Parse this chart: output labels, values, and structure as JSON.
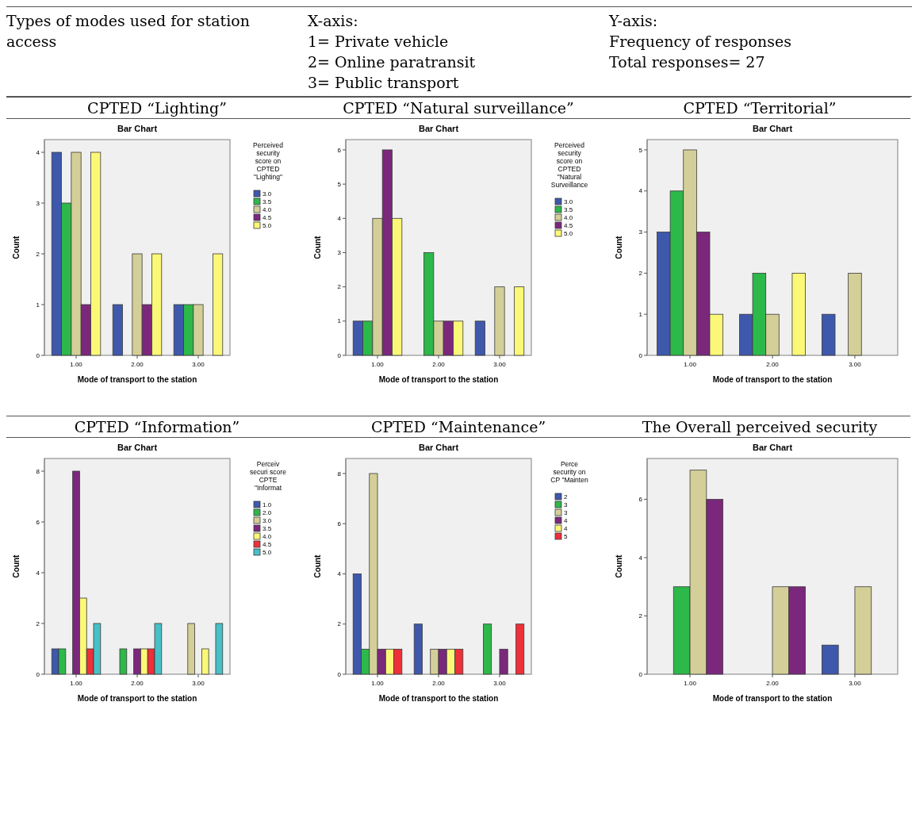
{
  "chart_data": [
    {
      "type": "other",
      "annotations": [
        "Types of modes used for station access",
        "X-axis:\n1= Private vehicle\n2= Online paratransit\n3= Public transport",
        "Y-axis:\nFrequency of responses\nTotal responses= 27"
      ]
    },
    {
      "type": "bar",
      "title": "CPTED “Lighting”",
      "subtitle": "Bar Chart",
      "xlabel": "Mode of transport to the station",
      "ylabel": "Count",
      "categories": [
        "1.00",
        "2.00",
        "3.00"
      ],
      "ylim": [
        0,
        4.25
      ],
      "yticks": [
        0,
        1,
        2,
        3,
        4
      ],
      "legend": "right",
      "legend_title": "Perceived security score on CPTED \"Lighting\"",
      "series": [
        {
          "name": "3.0",
          "color": "#3e58ac",
          "values": [
            4,
            1,
            1
          ]
        },
        {
          "name": "3.5",
          "color": "#2db84a",
          "values": [
            3,
            0,
            1
          ]
        },
        {
          "name": "4.0",
          "color": "#d4cf98",
          "values": [
            4,
            2,
            1
          ]
        },
        {
          "name": "4.5",
          "color": "#7b287c",
          "values": [
            1,
            1,
            0
          ]
        },
        {
          "name": "5.0",
          "color": "#fbf877",
          "values": [
            4,
            2,
            2
          ]
        }
      ]
    },
    {
      "type": "bar",
      "title": "CPTED “Natural surveillance”",
      "subtitle": "Bar Chart",
      "xlabel": "Mode of transport to the station",
      "ylabel": "Count",
      "categories": [
        "1.00",
        "2.00",
        "3.00"
      ],
      "ylim": [
        0,
        6.3
      ],
      "yticks": [
        0,
        1,
        2,
        3,
        4,
        5,
        6
      ],
      "legend": "right",
      "legend_title": "Perceived security score on CPTED \"Natural Surveillance",
      "series": [
        {
          "name": "3.0",
          "color": "#3e58ac",
          "values": [
            1,
            0,
            1
          ]
        },
        {
          "name": "3.5",
          "color": "#2db84a",
          "values": [
            1,
            3,
            0
          ]
        },
        {
          "name": "4.0",
          "color": "#d4cf98",
          "values": [
            4,
            1,
            2
          ]
        },
        {
          "name": "4.5",
          "color": "#7b287c",
          "values": [
            6,
            1,
            0
          ]
        },
        {
          "name": "5.0",
          "color": "#fbf877",
          "values": [
            4,
            1,
            2
          ]
        }
      ]
    },
    {
      "type": "bar",
      "title": "CPTED “Territorial”",
      "subtitle": "Bar Chart",
      "xlabel": "Mode of transport to the station",
      "ylabel": "Count",
      "categories": [
        "1.00",
        "2.00",
        "3.00"
      ],
      "ylim": [
        0,
        5.25
      ],
      "yticks": [
        0,
        1,
        2,
        3,
        4,
        5
      ],
      "series": [
        {
          "color": "#3e58ac",
          "values": [
            3,
            1,
            1
          ]
        },
        {
          "color": "#2db84a",
          "values": [
            4,
            2,
            0
          ]
        },
        {
          "color": "#d4cf98",
          "values": [
            5,
            1,
            2
          ]
        },
        {
          "color": "#7b287c",
          "values": [
            3,
            0,
            null
          ]
        },
        {
          "color": "#fbf877",
          "values": [
            1,
            2,
            null
          ]
        }
      ]
    },
    {
      "type": "bar",
      "title": "CPTED “Information”",
      "subtitle": "Bar Chart",
      "xlabel": "Mode of transport to the station",
      "ylabel": "Count",
      "categories": [
        "1.00",
        "2.00",
        "3.00"
      ],
      "ylim": [
        0,
        8.5
      ],
      "yticks": [
        0,
        2,
        4,
        6,
        8
      ],
      "legend": "right",
      "legend_title": "Perceiv securi score CPTE \"Informat",
      "series": [
        {
          "name": "1.0",
          "color": "#3e58ac",
          "values": [
            1,
            0,
            0
          ]
        },
        {
          "name": "2.0",
          "color": "#2db84a",
          "values": [
            1,
            1,
            0
          ]
        },
        {
          "name": "3.0",
          "color": "#d4cf98",
          "values": [
            0,
            0,
            2
          ]
        },
        {
          "name": "3.5",
          "color": "#7b287c",
          "values": [
            8,
            1,
            0
          ]
        },
        {
          "name": "4.0",
          "color": "#fbf877",
          "values": [
            3,
            1,
            1
          ]
        },
        {
          "name": "4.5",
          "color": "#ee3038",
          "values": [
            1,
            1,
            0
          ]
        },
        {
          "name": "5.0",
          "color": "#47c0c8",
          "values": [
            2,
            2,
            2
          ]
        }
      ]
    },
    {
      "type": "bar",
      "title": "CPTED “Maintenance”",
      "subtitle": "Bar Chart",
      "xlabel": "Mode of transport to the station",
      "ylabel": "Count",
      "categories": [
        "1.00",
        "2.00",
        "3.00"
      ],
      "ylim": [
        0,
        8.6
      ],
      "yticks": [
        0,
        2,
        4,
        6,
        8
      ],
      "legend": "right",
      "legend_title": "Perce security on CP \"Mainten",
      "series": [
        {
          "name": "2",
          "color": "#3e58ac",
          "values": [
            4,
            2,
            0
          ]
        },
        {
          "name": "3",
          "color": "#2db84a",
          "values": [
            1,
            0,
            2
          ]
        },
        {
          "name": "3",
          "color": "#d4cf98",
          "values": [
            8,
            1,
            0
          ]
        },
        {
          "name": "4",
          "color": "#7b287c",
          "values": [
            1,
            1,
            1
          ]
        },
        {
          "name": "4",
          "color": "#fbf877",
          "values": [
            1,
            1,
            0
          ]
        },
        {
          "name": "5",
          "color": "#ee3038",
          "values": [
            1,
            1,
            2
          ]
        }
      ]
    },
    {
      "type": "bar",
      "title": "The Overall perceived security",
      "subtitle": "Bar Chart",
      "xlabel": "Mode of transport to the station",
      "ylabel": "Count",
      "categories": [
        "1.00",
        "2.00",
        "3.00"
      ],
      "ylim": [
        0,
        7.4
      ],
      "yticks": [
        0,
        2,
        4,
        6
      ],
      "series": [
        {
          "color": "#3e58ac",
          "values": [
            0,
            0,
            1
          ]
        },
        {
          "color": "#2db84a",
          "values": [
            3,
            0,
            0
          ]
        },
        {
          "color": "#d4cf98",
          "values": [
            7,
            3,
            3
          ]
        },
        {
          "color": "#7b287c",
          "values": [
            6,
            3,
            null
          ]
        }
      ]
    }
  ]
}
